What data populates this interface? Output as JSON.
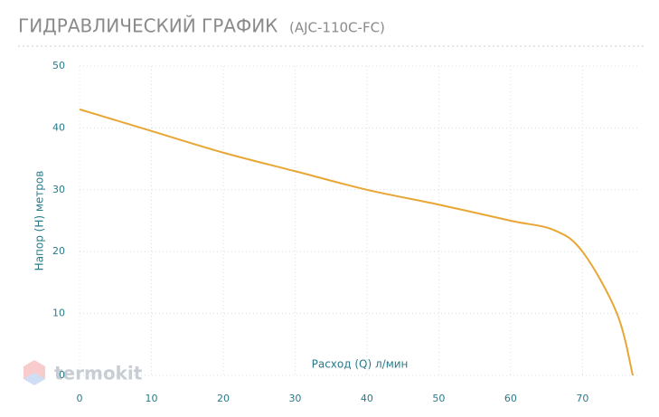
{
  "chart_data": {
    "type": "line",
    "title": "ГИДРАВЛИЧЕСКИЙ ГРАФИК",
    "subtitle": "(AJC-110C-FC)",
    "x_label": "Расход (Q) л/мин",
    "y_label": "Напор (H) метров",
    "watermark": "termokit",
    "x": [
      0,
      10,
      20,
      30,
      40,
      50,
      60,
      66,
      70,
      74.8,
      77
    ],
    "series": [
      {
        "name": "AJC-110C-FC",
        "color": "#e8a634",
        "values": [
          43,
          39.5,
          36,
          33,
          30,
          27.6,
          25,
          23.5,
          20,
          10,
          0
        ]
      }
    ],
    "xlim": [
      0,
      77
    ],
    "xticks": [
      0,
      10,
      20,
      30,
      40,
      50,
      60,
      70
    ],
    "ylim": [
      0,
      50
    ],
    "yticks": [
      0,
      10,
      20,
      30,
      40,
      50
    ],
    "grid": true
  }
}
